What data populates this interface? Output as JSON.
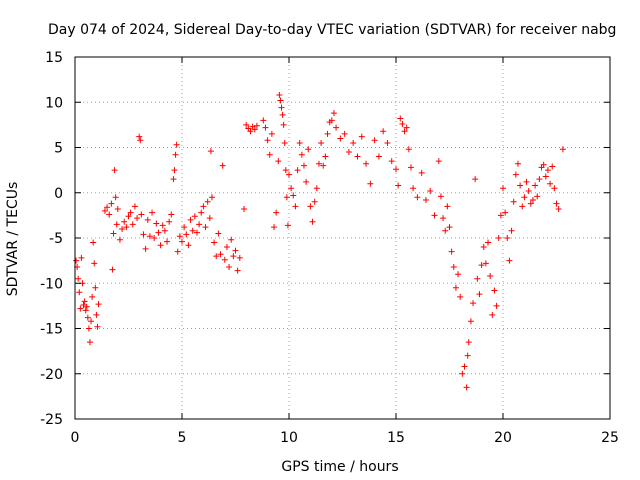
{
  "chart_data": {
    "type": "scatter",
    "title": "Day 074 of 2024, Sidereal Day-to-day VTEC variation (SDTVAR) for receiver nabg",
    "xlabel": "GPS time / hours",
    "ylabel": "SDTVAR / TECUs",
    "xlim": [
      0,
      25
    ],
    "ylim": [
      -25,
      15
    ],
    "xticks": [
      0,
      5,
      10,
      15,
      20,
      25
    ],
    "yticks": [
      -25,
      -20,
      -15,
      -10,
      -5,
      0,
      5,
      10,
      15
    ],
    "xtick_labels": [
      "0",
      "5",
      "10",
      "15",
      "20",
      "25"
    ],
    "ytick_labels": [
      "-25",
      "-20",
      "-15",
      "-10",
      "-5",
      "0",
      "5",
      "10",
      "15"
    ],
    "grid": true,
    "marker": "+",
    "color": "#ff0000",
    "series": [
      {
        "name": "SDTVAR",
        "points": [
          [
            0.05,
            -7.5
          ],
          [
            0.1,
            -8.2
          ],
          [
            0.15,
            -9.5
          ],
          [
            0.2,
            -11
          ],
          [
            0.25,
            -12.8
          ],
          [
            0.3,
            -7.2
          ],
          [
            0.35,
            -10
          ],
          [
            0.4,
            -12.4
          ],
          [
            0.45,
            -12
          ],
          [
            0.5,
            -13
          ],
          [
            0.55,
            -12.6
          ],
          [
            0.6,
            -13.8
          ],
          [
            0.65,
            -15
          ],
          [
            0.7,
            -16.5
          ],
          [
            0.75,
            -14.2
          ],
          [
            0.8,
            -11.5
          ],
          [
            0.85,
            -5.5
          ],
          [
            0.9,
            -7.8
          ],
          [
            0.95,
            -10.5
          ],
          [
            1.0,
            -13.5
          ],
          [
            1.05,
            -14.8
          ],
          [
            1.1,
            -12.3
          ],
          [
            1.4,
            -2
          ],
          [
            1.5,
            -1.6
          ],
          [
            1.6,
            -2.4
          ],
          [
            1.7,
            -1.2
          ],
          [
            1.75,
            -8.5
          ],
          [
            1.8,
            -4.5
          ],
          [
            1.85,
            2.5
          ],
          [
            1.9,
            -0.5
          ],
          [
            1.95,
            -3.5
          ],
          [
            2.0,
            -1.8
          ],
          [
            2.1,
            -5.2
          ],
          [
            2.2,
            -4
          ],
          [
            2.3,
            -3.2
          ],
          [
            2.4,
            -3.8
          ],
          [
            2.5,
            -2.6
          ],
          [
            2.6,
            -2.2
          ],
          [
            2.7,
            -3.5
          ],
          [
            2.8,
            -1.5
          ],
          [
            2.9,
            -2.8
          ],
          [
            3.0,
            6.2
          ],
          [
            3.05,
            5.8
          ],
          [
            3.1,
            -2.4
          ],
          [
            3.2,
            -4.6
          ],
          [
            3.3,
            -6.2
          ],
          [
            3.4,
            -3
          ],
          [
            3.5,
            -4.8
          ],
          [
            3.6,
            -2.2
          ],
          [
            3.7,
            -5
          ],
          [
            3.8,
            -3.4
          ],
          [
            3.9,
            -4.4
          ],
          [
            4.0,
            -5.8
          ],
          [
            4.1,
            -3.6
          ],
          [
            4.2,
            -4.2
          ],
          [
            4.3,
            -5.4
          ],
          [
            4.4,
            -3.2
          ],
          [
            4.5,
            -2.4
          ],
          [
            4.6,
            1.5
          ],
          [
            4.65,
            2.5
          ],
          [
            4.7,
            4.2
          ],
          [
            4.75,
            5.3
          ],
          [
            4.8,
            -6.5
          ],
          [
            4.9,
            -4.8
          ],
          [
            5.0,
            -5.4
          ],
          [
            5.1,
            -3.8
          ],
          [
            5.2,
            -4.6
          ],
          [
            5.3,
            -5.8
          ],
          [
            5.4,
            -3
          ],
          [
            5.5,
            -4.2
          ],
          [
            5.6,
            -2.6
          ],
          [
            5.7,
            -4.4
          ],
          [
            5.8,
            -3.5
          ],
          [
            5.9,
            -2.2
          ],
          [
            6.0,
            -1.5
          ],
          [
            6.1,
            -3.8
          ],
          [
            6.2,
            -1
          ],
          [
            6.3,
            -2.8
          ],
          [
            6.35,
            4.6
          ],
          [
            6.4,
            -0.5
          ],
          [
            6.5,
            -5.5
          ],
          [
            6.6,
            -7
          ],
          [
            6.7,
            -4.5
          ],
          [
            6.8,
            -6.8
          ],
          [
            6.9,
            3
          ],
          [
            7.0,
            -7.4
          ],
          [
            7.1,
            -6
          ],
          [
            7.2,
            -8.2
          ],
          [
            7.3,
            -5.2
          ],
          [
            7.4,
            -7
          ],
          [
            7.5,
            -6.4
          ],
          [
            7.6,
            -8.6
          ],
          [
            7.7,
            -7.2
          ],
          [
            7.9,
            -1.8
          ],
          [
            8.0,
            7.5
          ],
          [
            8.1,
            7.1
          ],
          [
            8.2,
            6.8
          ],
          [
            8.3,
            7.3
          ],
          [
            8.4,
            7.0
          ],
          [
            8.5,
            7.4
          ],
          [
            8.8,
            8
          ],
          [
            8.9,
            7.2
          ],
          [
            9.0,
            5.8
          ],
          [
            9.1,
            4.2
          ],
          [
            9.2,
            6.5
          ],
          [
            9.3,
            -3.8
          ],
          [
            9.4,
            -2.2
          ],
          [
            9.5,
            3.5
          ],
          [
            9.55,
            10.8
          ],
          [
            9.6,
            10.2
          ],
          [
            9.65,
            9.4
          ],
          [
            9.7,
            8.6
          ],
          [
            9.75,
            7.5
          ],
          [
            9.8,
            5.5
          ],
          [
            9.85,
            2.5
          ],
          [
            9.9,
            -0.5
          ],
          [
            9.95,
            -3.6
          ],
          [
            10.0,
            2
          ],
          [
            10.1,
            0.5
          ],
          [
            10.2,
            -0.3
          ],
          [
            10.3,
            -1.5
          ],
          [
            10.4,
            2.5
          ],
          [
            10.5,
            5.5
          ],
          [
            10.6,
            4.2
          ],
          [
            10.7,
            3
          ],
          [
            10.8,
            1.2
          ],
          [
            10.9,
            4.8
          ],
          [
            11.0,
            -1.5
          ],
          [
            11.1,
            -3.2
          ],
          [
            11.2,
            -1
          ],
          [
            11.3,
            0.5
          ],
          [
            11.4,
            3.2
          ],
          [
            11.5,
            5.5
          ],
          [
            11.6,
            3
          ],
          [
            11.7,
            4
          ],
          [
            11.8,
            6.5
          ],
          [
            11.9,
            7.8
          ],
          [
            12.0,
            8
          ],
          [
            12.1,
            8.8
          ],
          [
            12.2,
            7.2
          ],
          [
            12.4,
            6
          ],
          [
            12.6,
            6.5
          ],
          [
            12.8,
            4.5
          ],
          [
            13.0,
            5.5
          ],
          [
            13.2,
            4
          ],
          [
            13.4,
            6.2
          ],
          [
            13.6,
            3.2
          ],
          [
            13.8,
            1
          ],
          [
            14.0,
            5.8
          ],
          [
            14.2,
            4
          ],
          [
            14.4,
            6.8
          ],
          [
            14.6,
            5.5
          ],
          [
            14.8,
            3.5
          ],
          [
            15.0,
            2.6
          ],
          [
            15.1,
            0.8
          ],
          [
            15.2,
            8.2
          ],
          [
            15.3,
            7.6
          ],
          [
            15.4,
            6.8
          ],
          [
            15.5,
            7.2
          ],
          [
            15.6,
            4.8
          ],
          [
            15.7,
            2.8
          ],
          [
            15.8,
            0.5
          ],
          [
            16.0,
            -0.5
          ],
          [
            16.2,
            2.2
          ],
          [
            16.4,
            -0.8
          ],
          [
            16.6,
            0.2
          ],
          [
            16.8,
            -2.5
          ],
          [
            17.0,
            3.5
          ],
          [
            17.1,
            -0.4
          ],
          [
            17.2,
            -2.8
          ],
          [
            17.3,
            -4.2
          ],
          [
            17.4,
            -1.5
          ],
          [
            17.5,
            -3.8
          ],
          [
            17.6,
            -6.5
          ],
          [
            17.7,
            -8.2
          ],
          [
            17.8,
            -10.5
          ],
          [
            17.9,
            -9
          ],
          [
            18.0,
            -11.5
          ],
          [
            18.1,
            -20
          ],
          [
            18.2,
            -19.2
          ],
          [
            18.3,
            -21.5
          ],
          [
            18.35,
            -18
          ],
          [
            18.4,
            -16.5
          ],
          [
            18.5,
            -14.2
          ],
          [
            18.6,
            -12.2
          ],
          [
            18.7,
            1.5
          ],
          [
            18.8,
            -9.5
          ],
          [
            18.9,
            -11.2
          ],
          [
            19.0,
            -8
          ],
          [
            19.1,
            -6
          ],
          [
            19.2,
            -7.8
          ],
          [
            19.3,
            -5.5
          ],
          [
            19.4,
            -9.2
          ],
          [
            19.5,
            -13.5
          ],
          [
            19.6,
            -10.8
          ],
          [
            19.7,
            -12.5
          ],
          [
            19.8,
            -5
          ],
          [
            19.9,
            -2.5
          ],
          [
            20.0,
            0.5
          ],
          [
            20.1,
            -2.2
          ],
          [
            20.2,
            -5
          ],
          [
            20.3,
            -7.5
          ],
          [
            20.4,
            -4.2
          ],
          [
            20.5,
            -1
          ],
          [
            20.6,
            2
          ],
          [
            20.7,
            3.2
          ],
          [
            20.8,
            0.8
          ],
          [
            20.9,
            -1.5
          ],
          [
            21.0,
            -0.5
          ],
          [
            21.1,
            1.2
          ],
          [
            21.2,
            0.2
          ],
          [
            21.3,
            -1.2
          ],
          [
            21.4,
            -0.8
          ],
          [
            21.5,
            0.8
          ],
          [
            21.6,
            -0.4
          ],
          [
            21.7,
            1.5
          ],
          [
            21.8,
            2.8
          ],
          [
            21.9,
            3.1
          ],
          [
            22.0,
            1.8
          ],
          [
            22.1,
            2.5
          ],
          [
            22.2,
            1
          ],
          [
            22.3,
            2.9
          ],
          [
            22.4,
            0.5
          ],
          [
            22.5,
            -1.2
          ],
          [
            22.6,
            -1.8
          ],
          [
            22.8,
            4.8
          ]
        ]
      }
    ]
  }
}
